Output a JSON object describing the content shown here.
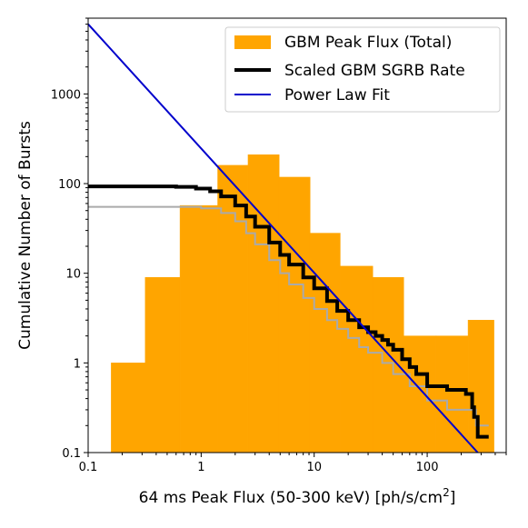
{
  "chart_data": {
    "type": "bar",
    "title": "",
    "xlabel": "64 ms Peak Flux (50-300 keV) [ph/s/cm",
    "xlabel_sup": "2",
    "xlabel_end": "]",
    "ylabel": "Cumulative Number of Bursts",
    "xscale": "log",
    "yscale": "log",
    "xlim": [
      0.1,
      500
    ],
    "ylim": [
      0.1,
      7000
    ],
    "grid": false,
    "legend_position": "top-right",
    "x_ticks": [
      {
        "value": 0.1,
        "label": "0.1"
      },
      {
        "value": 1,
        "label": "1"
      },
      {
        "value": 10,
        "label": "10"
      },
      {
        "value": 100,
        "label": "100"
      }
    ],
    "y_ticks": [
      {
        "value": 0.1,
        "label": "0.1"
      },
      {
        "value": 1,
        "label": "1"
      },
      {
        "value": 10,
        "label": "10"
      },
      {
        "value": 100,
        "label": "100"
      },
      {
        "value": 1000,
        "label": "1000"
      }
    ],
    "histogram": {
      "name": "GBM Peak Flux (Total)",
      "color": "#ffa500",
      "bin_edges": [
        0.16,
        0.32,
        0.65,
        1.4,
        2.6,
        4.9,
        9.2,
        17,
        33,
        62,
        120,
        230,
        390
      ],
      "values": [
        1,
        9,
        57,
        160,
        210,
        118,
        28,
        12,
        9,
        2,
        2,
        3
      ]
    },
    "series": [
      {
        "name": "Scaled GBM SGRB Rate",
        "color": "#000000",
        "style": "step",
        "x": [
          0.1,
          0.3,
          0.6,
          0.9,
          1.2,
          1.5,
          2.0,
          2.5,
          3.0,
          4.0,
          5.0,
          6.0,
          8.0,
          10,
          13,
          16,
          20,
          25,
          30,
          35,
          40,
          45,
          50,
          60,
          70,
          80,
          100,
          150,
          200,
          220,
          250,
          260,
          280,
          290,
          350
        ],
        "y": [
          93,
          93,
          92,
          88,
          82,
          72,
          57,
          43,
          33,
          22,
          16,
          12.5,
          9,
          6.8,
          4.9,
          3.8,
          3.0,
          2.5,
          2.2,
          2.0,
          1.8,
          1.6,
          1.4,
          1.1,
          0.9,
          0.75,
          0.55,
          0.5,
          0.5,
          0.45,
          0.32,
          0.25,
          0.15,
          0.15,
          0.15
        ]
      },
      {
        "name": "",
        "color": "#aaaaaa",
        "style": "step",
        "x": [
          0.1,
          0.6,
          1.0,
          1.5,
          2.0,
          2.5,
          3.0,
          4.0,
          5.0,
          6.0,
          8.0,
          10,
          13,
          16,
          20,
          25,
          30,
          40,
          50,
          70,
          100,
          150,
          200,
          250,
          270,
          350
        ],
        "y": [
          55,
          55,
          53,
          47,
          38,
          28,
          21,
          14,
          10,
          7.5,
          5.3,
          4.0,
          3.0,
          2.4,
          1.9,
          1.5,
          1.3,
          1.0,
          0.75,
          0.55,
          0.38,
          0.3,
          0.3,
          0.3,
          0.2,
          0.2
        ]
      },
      {
        "name": "Power Law Fit",
        "color": "#0000cc",
        "style": "line",
        "x": [
          0.1,
          280
        ],
        "y": [
          6000,
          0.1
        ]
      }
    ]
  }
}
